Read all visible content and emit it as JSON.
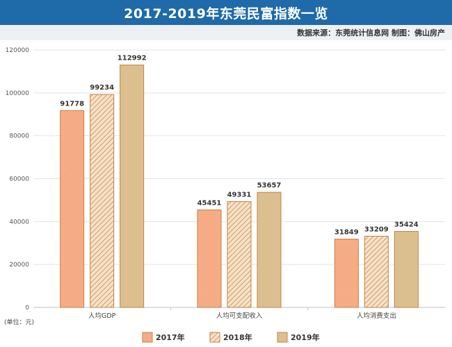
{
  "header": {
    "title": "2017-2019年东莞民富指数一览",
    "source": "数据来源：东莞统计信息网 制图：佛山房产"
  },
  "colors": {
    "banner": "#1f6aa8",
    "series_2017": "#f7b28c",
    "series_2018": "#f6e2c8",
    "series_2019": "#dcbf8e",
    "bar_stroke": "#c87f3f"
  },
  "chart_data": {
    "type": "bar",
    "categories": [
      "人均GDP",
      "人均可支配收入",
      "人均消费支出"
    ],
    "series": [
      {
        "name": "2017年",
        "values": [
          91778,
          45451,
          31849
        ],
        "color": "#f7b28c",
        "pattern": "dots"
      },
      {
        "name": "2018年",
        "values": [
          99234,
          49331,
          33209
        ],
        "color": "#f6e2c8",
        "pattern": "diagonal-hatch"
      },
      {
        "name": "2019年",
        "values": [
          112992,
          53657,
          35424
        ],
        "color": "#dcbf8e",
        "pattern": "solid"
      }
    ],
    "ylim": [
      0,
      120000
    ],
    "yticks": [
      "0",
      "20000",
      "40000",
      "60000",
      "80000",
      "100000",
      "120000"
    ],
    "unit_label": "(单位：元)",
    "legend_position": "bottom",
    "grid": true
  }
}
